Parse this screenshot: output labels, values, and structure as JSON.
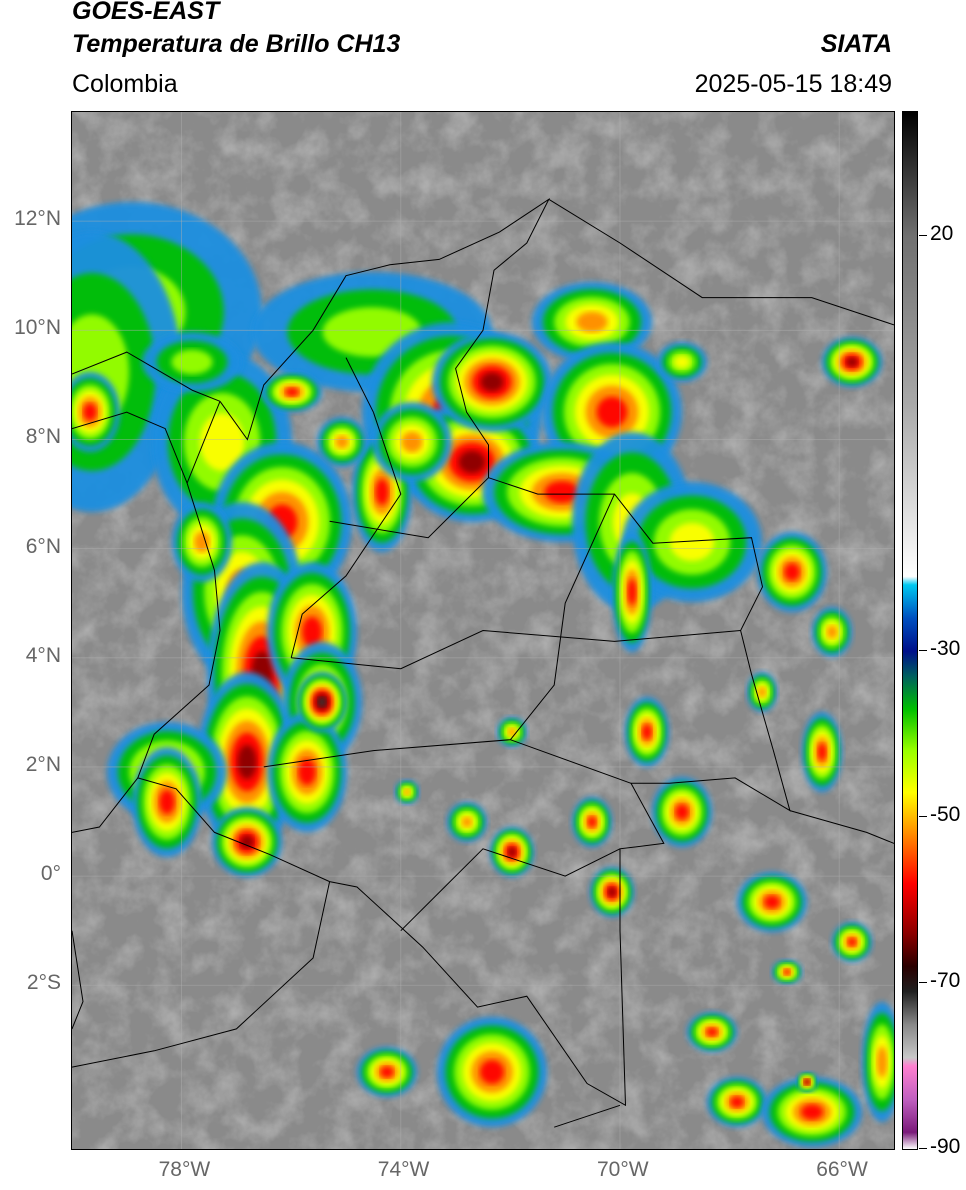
{
  "header": {
    "satellite": "GOES-EAST",
    "product": "Temperatura de Brillo CH13",
    "agency": "SIATA",
    "region": "Colombia",
    "datetime": "2025-05-15 18:49"
  },
  "map": {
    "extent": {
      "lon_min": -80.0,
      "lon_max": -65.0,
      "lat_min": -5.0,
      "lat_max": 14.0
    },
    "lat_ticks": [
      {
        "value": 12,
        "label": "12°N"
      },
      {
        "value": 10,
        "label": "10°N"
      },
      {
        "value": 8,
        "label": "8°N"
      },
      {
        "value": 6,
        "label": "6°N"
      },
      {
        "value": 4,
        "label": "4°N"
      },
      {
        "value": 2,
        "label": "2°N"
      },
      {
        "value": 0,
        "label": "0°"
      },
      {
        "value": -2,
        "label": "2°S"
      }
    ],
    "lon_ticks": [
      {
        "value": -78,
        "label": "78°W"
      },
      {
        "value": -74,
        "label": "74°W"
      },
      {
        "value": -70,
        "label": "70°W"
      },
      {
        "value": -66,
        "label": "66°W"
      }
    ],
    "grid": true
  },
  "colorbar": {
    "range": [
      -90,
      35
    ],
    "labels": [
      {
        "value": 20,
        "label": "20"
      },
      {
        "value": -30,
        "label": "-30"
      },
      {
        "value": -50,
        "label": "-50"
      },
      {
        "value": -70,
        "label": "-70"
      },
      {
        "value": -90,
        "label": "-90"
      }
    ],
    "stops": [
      {
        "value": -90,
        "color": "#ffffff"
      },
      {
        "value": -88,
        "color": "#7a1a7a"
      },
      {
        "value": -84,
        "color": "#c060c0"
      },
      {
        "value": -80,
        "color": "#ff80d0"
      },
      {
        "value": -79,
        "color": "#c8c8c8"
      },
      {
        "value": -75,
        "color": "#888888"
      },
      {
        "value": -71,
        "color": "#202020"
      },
      {
        "value": -68,
        "color": "#2a0000"
      },
      {
        "value": -64,
        "color": "#8b0000"
      },
      {
        "value": -58,
        "color": "#ff0000"
      },
      {
        "value": -52,
        "color": "#ff8c00"
      },
      {
        "value": -47,
        "color": "#ffff00"
      },
      {
        "value": -42,
        "color": "#9aff00"
      },
      {
        "value": -37,
        "color": "#00c000"
      },
      {
        "value": -33,
        "color": "#006060"
      },
      {
        "value": -30,
        "color": "#00108a"
      },
      {
        "value": -26,
        "color": "#0050c0"
      },
      {
        "value": -22,
        "color": "#00c8f0"
      },
      {
        "value": -21,
        "color": "#ffffff"
      },
      {
        "value": 0,
        "color": "#a8a8a8"
      },
      {
        "value": 20,
        "color": "#707070"
      },
      {
        "value": 35,
        "color": "#000000"
      }
    ]
  }
}
